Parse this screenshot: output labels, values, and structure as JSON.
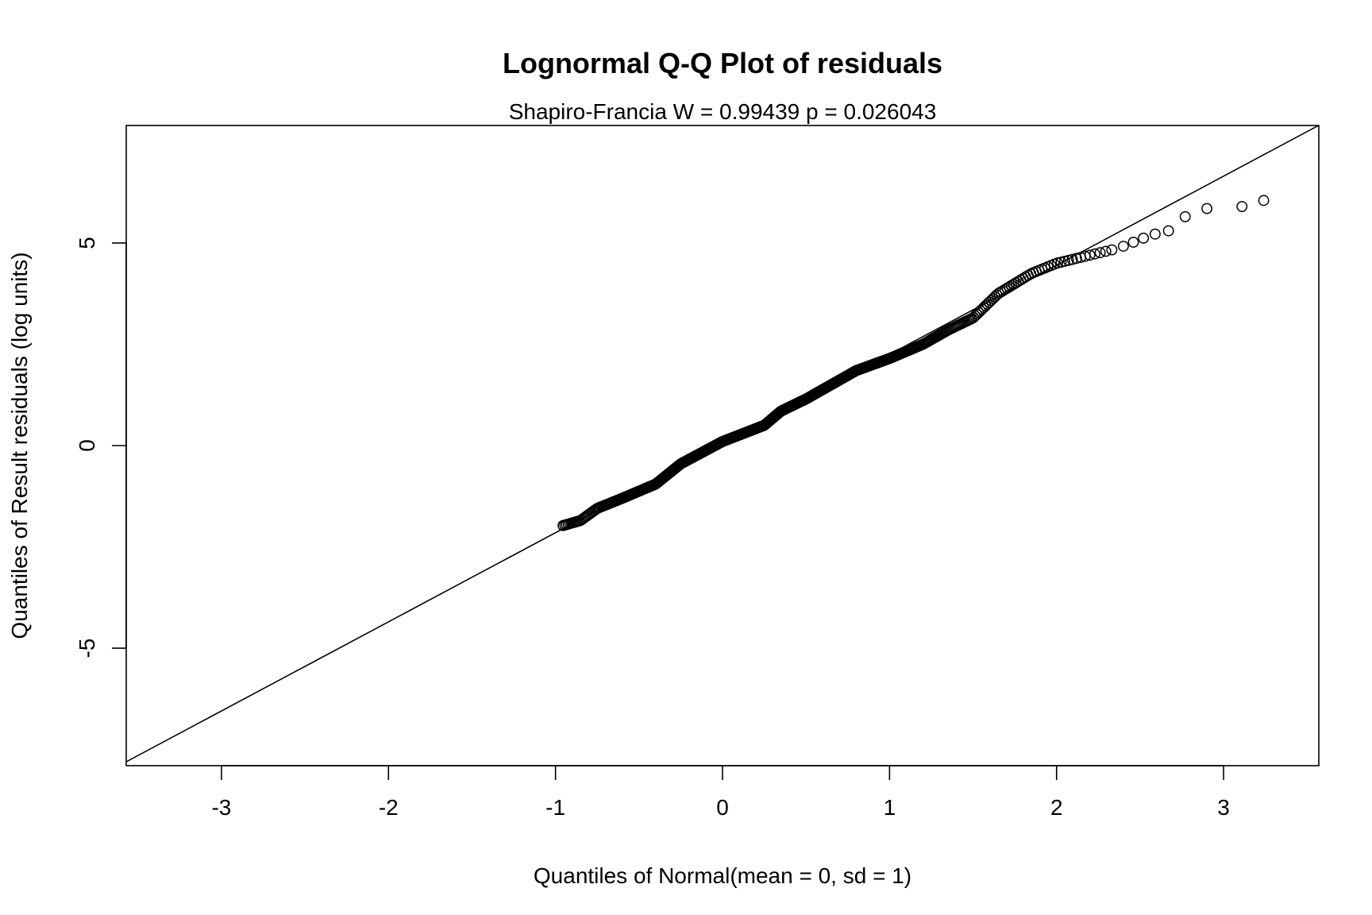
{
  "chart_data": {
    "type": "scatter",
    "title": "Lognormal Q-Q Plot of residuals",
    "subtitle": "Shapiro-Francia W = 0.99439   p = 0.026043",
    "xlabel": "Quantiles of Normal(mean = 0, sd = 1)",
    "ylabel": "Quantiles of Result residuals (log units)",
    "xlim": [
      -3.57,
      3.57
    ],
    "ylim": [
      -7.9,
      7.9
    ],
    "x_ticks": [
      -3,
      -2,
      -1,
      0,
      1,
      2,
      3
    ],
    "x_tick_labels": [
      "-3",
      "-2",
      "-1",
      "0",
      "1",
      "2",
      "3"
    ],
    "y_ticks": [
      -5,
      0,
      5
    ],
    "y_tick_labels": [
      "-5",
      "0",
      "5"
    ],
    "grid": false,
    "legend": "none",
    "reference_line": {
      "slope": 2.2,
      "intercept": 0.05
    },
    "curve_knots": [
      [
        -0.96,
        -1.98
      ],
      [
        -0.85,
        -1.85
      ],
      [
        -0.75,
        -1.55
      ],
      [
        -0.6,
        -1.3
      ],
      [
        -0.4,
        -0.95
      ],
      [
        -0.25,
        -0.45
      ],
      [
        0.0,
        0.1
      ],
      [
        0.25,
        0.5
      ],
      [
        0.35,
        0.85
      ],
      [
        0.5,
        1.15
      ],
      [
        0.65,
        1.5
      ],
      [
        0.8,
        1.85
      ],
      [
        1.0,
        2.15
      ],
      [
        1.2,
        2.5
      ],
      [
        1.35,
        2.85
      ],
      [
        1.5,
        3.15
      ],
      [
        1.65,
        3.75
      ],
      [
        1.85,
        4.25
      ],
      [
        2.0,
        4.5
      ],
      [
        2.2,
        4.7
      ],
      [
        2.35,
        4.85
      ]
    ],
    "tail_points": [
      [
        2.4,
        4.92
      ],
      [
        2.46,
        5.02
      ],
      [
        2.52,
        5.12
      ],
      [
        2.59,
        5.22
      ],
      [
        2.67,
        5.3
      ],
      [
        2.77,
        5.65
      ],
      [
        2.9,
        5.85
      ],
      [
        3.11,
        5.9
      ],
      [
        3.24,
        6.05
      ]
    ],
    "n_curve_points": 460,
    "point_color": "#000000",
    "line_color": "#000000"
  }
}
